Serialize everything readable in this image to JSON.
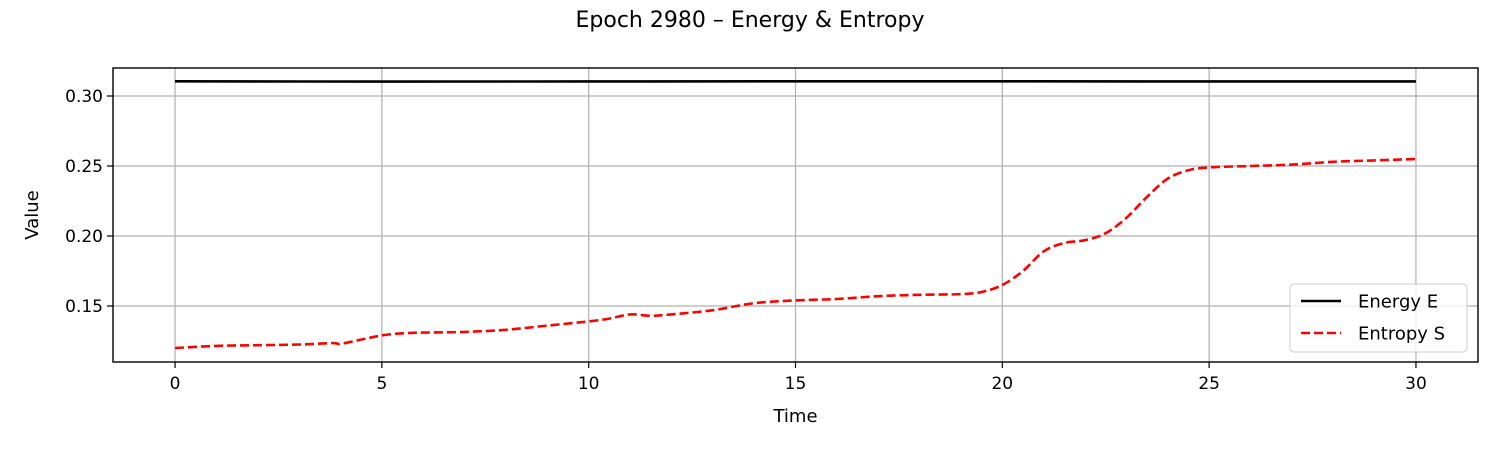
{
  "chart_data": {
    "type": "line",
    "title": "Epoch 2980 – Energy & Entropy",
    "xlabel": "Time",
    "ylabel": "Value",
    "xlim": [
      -1.5,
      31.5
    ],
    "ylim": [
      0.11,
      0.32
    ],
    "xticks": [
      0,
      5,
      10,
      15,
      20,
      25,
      30
    ],
    "xtick_labels": [
      "0",
      "5",
      "10",
      "15",
      "20",
      "25",
      "30"
    ],
    "yticks": [
      0.15,
      0.2,
      0.25,
      0.3
    ],
    "ytick_labels": [
      "0.15",
      "0.20",
      "0.25",
      "0.30"
    ],
    "grid": true,
    "legend_position": "lower-right",
    "series": [
      {
        "name": "Energy E",
        "color": "#000000",
        "style": "solid",
        "x": [
          0,
          5,
          10,
          15,
          20,
          25,
          30
        ],
        "values": [
          0.3105,
          0.3103,
          0.3104,
          0.3105,
          0.3105,
          0.3104,
          0.3104
        ]
      },
      {
        "name": "Entropy S",
        "color": "#ff0000",
        "style": "dashed",
        "x": [
          0,
          1,
          2,
          3,
          3.8,
          4,
          4.5,
          5,
          5.5,
          6,
          7,
          8,
          9,
          10,
          10.5,
          11,
          11.5,
          12,
          13,
          14,
          15,
          16,
          17,
          18,
          19,
          19.5,
          20,
          20.5,
          21,
          21.5,
          22,
          22.5,
          23,
          23.5,
          24,
          24.5,
          25,
          26,
          27,
          28,
          29,
          30
        ],
        "values": [
          0.12,
          0.1215,
          0.122,
          0.1225,
          0.1235,
          0.123,
          0.126,
          0.129,
          0.1305,
          0.131,
          0.1315,
          0.133,
          0.136,
          0.139,
          0.141,
          0.144,
          0.143,
          0.144,
          0.147,
          0.152,
          0.154,
          0.155,
          0.157,
          0.158,
          0.1585,
          0.16,
          0.165,
          0.175,
          0.189,
          0.195,
          0.197,
          0.202,
          0.213,
          0.228,
          0.241,
          0.247,
          0.249,
          0.25,
          0.251,
          0.253,
          0.254,
          0.255
        ]
      }
    ]
  }
}
